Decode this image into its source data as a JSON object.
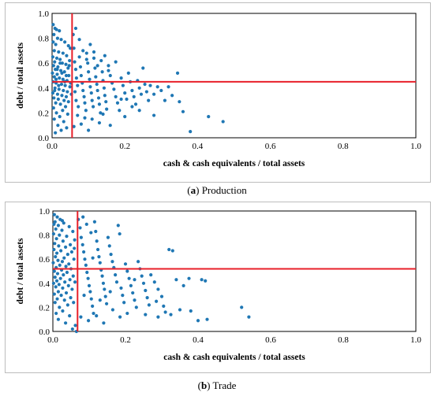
{
  "captions": [
    {
      "letter": "a",
      "text": "Production"
    },
    {
      "letter": "b",
      "text": "Trade"
    }
  ],
  "chart_data": [
    {
      "type": "scatter",
      "title": "",
      "xlabel": "cash & cash equivalents / total assets",
      "ylabel": "debt / total assets",
      "xlim": [
        0,
        1.0
      ],
      "ylim": [
        0,
        1.0
      ],
      "xticks": [
        "0.0",
        "0.2",
        "0.4",
        "0.6",
        "0.8",
        "1.0"
      ],
      "yticks": [
        "0.0",
        "0.2",
        "0.4",
        "0.6",
        "0.8",
        "1.0"
      ],
      "grid": false,
      "point_color": "#1f77b4",
      "reference_color": "#e8202a",
      "reference_lines": {
        "x": 0.055,
        "y": 0.45
      },
      "points": [
        [
          0.003,
          0.91
        ],
        [
          0.008,
          0.88
        ],
        [
          0.012,
          0.87
        ],
        [
          0.02,
          0.86
        ],
        [
          0.005,
          0.83
        ],
        [
          0.015,
          0.8
        ],
        [
          0.025,
          0.79
        ],
        [
          0.003,
          0.77
        ],
        [
          0.035,
          0.77
        ],
        [
          0.01,
          0.75
        ],
        [
          0.045,
          0.74
        ],
        [
          0.05,
          0.72
        ],
        [
          0.006,
          0.7
        ],
        [
          0.018,
          0.69
        ],
        [
          0.03,
          0.68
        ],
        [
          0.04,
          0.66
        ],
        [
          0.002,
          0.65
        ],
        [
          0.013,
          0.64
        ],
        [
          0.022,
          0.63
        ],
        [
          0.048,
          0.62
        ],
        [
          0.007,
          0.61
        ],
        [
          0.028,
          0.6
        ],
        [
          0.038,
          0.59
        ],
        [
          0.004,
          0.58
        ],
        [
          0.016,
          0.57
        ],
        [
          0.044,
          0.56
        ],
        [
          0.009,
          0.55
        ],
        [
          0.024,
          0.54
        ],
        [
          0.034,
          0.53
        ],
        [
          0.001,
          0.52
        ],
        [
          0.014,
          0.51
        ],
        [
          0.046,
          0.5
        ],
        [
          0.006,
          0.49
        ],
        [
          0.02,
          0.48
        ],
        [
          0.03,
          0.47
        ],
        [
          0.041,
          0.46
        ],
        [
          0.003,
          0.45
        ],
        [
          0.011,
          0.44
        ],
        [
          0.026,
          0.43
        ],
        [
          0.036,
          0.42
        ],
        [
          0.049,
          0.41
        ],
        [
          0.008,
          0.4
        ],
        [
          0.019,
          0.39
        ],
        [
          0.031,
          0.38
        ],
        [
          0.042,
          0.37
        ],
        [
          0.002,
          0.36
        ],
        [
          0.015,
          0.35
        ],
        [
          0.027,
          0.34
        ],
        [
          0.039,
          0.33
        ],
        [
          0.005,
          0.32
        ],
        [
          0.017,
          0.31
        ],
        [
          0.033,
          0.3
        ],
        [
          0.045,
          0.29
        ],
        [
          0.01,
          0.28
        ],
        [
          0.023,
          0.27
        ],
        [
          0.037,
          0.25
        ],
        [
          0.004,
          0.24
        ],
        [
          0.029,
          0.22
        ],
        [
          0.012,
          0.2
        ],
        [
          0.043,
          0.19
        ],
        [
          0.021,
          0.17
        ],
        [
          0.006,
          0.15
        ],
        [
          0.032,
          0.13
        ],
        [
          0.016,
          0.1
        ],
        [
          0.04,
          0.08
        ],
        [
          0.025,
          0.06
        ],
        [
          0.009,
          0.04
        ],
        [
          0.047,
          0.58
        ],
        [
          0.051,
          0.44
        ],
        [
          0.053,
          0.35
        ],
        [
          0.018,
          0.42
        ],
        [
          0.027,
          0.52
        ],
        [
          0.011,
          0.47
        ],
        [
          0.035,
          0.45
        ],
        [
          0.014,
          0.55
        ],
        [
          0.007,
          0.38
        ],
        [
          0.022,
          0.6
        ],
        [
          0.039,
          0.5
        ],
        [
          0.058,
          0.83
        ],
        [
          0.06,
          0.72
        ],
        [
          0.062,
          0.61
        ],
        [
          0.065,
          0.55
        ],
        [
          0.067,
          0.48
        ],
        [
          0.07,
          0.42
        ],
        [
          0.063,
          0.37
        ],
        [
          0.066,
          0.3
        ],
        [
          0.072,
          0.25
        ],
        [
          0.075,
          0.65
        ],
        [
          0.078,
          0.57
        ],
        [
          0.08,
          0.5
        ],
        [
          0.083,
          0.44
        ],
        [
          0.085,
          0.38
        ],
        [
          0.088,
          0.33
        ],
        [
          0.09,
          0.28
        ],
        [
          0.093,
          0.22
        ],
        [
          0.095,
          0.68
        ],
        [
          0.098,
          0.6
        ],
        [
          0.1,
          0.53
        ],
        [
          0.103,
          0.47
        ],
        [
          0.105,
          0.41
        ],
        [
          0.108,
          0.36
        ],
        [
          0.11,
          0.3
        ],
        [
          0.113,
          0.25
        ],
        [
          0.115,
          0.64
        ],
        [
          0.118,
          0.56
        ],
        [
          0.12,
          0.49
        ],
        [
          0.123,
          0.43
        ],
        [
          0.125,
          0.38
        ],
        [
          0.128,
          0.32
        ],
        [
          0.13,
          0.27
        ],
        [
          0.133,
          0.2
        ],
        [
          0.135,
          0.62
        ],
        [
          0.138,
          0.53
        ],
        [
          0.14,
          0.46
        ],
        [
          0.143,
          0.4
        ],
        [
          0.145,
          0.34
        ],
        [
          0.148,
          0.29
        ],
        [
          0.15,
          0.23
        ],
        [
          0.155,
          0.58
        ],
        [
          0.16,
          0.5
        ],
        [
          0.165,
          0.44
        ],
        [
          0.17,
          0.39
        ],
        [
          0.175,
          0.33
        ],
        [
          0.18,
          0.28
        ],
        [
          0.185,
          0.22
        ],
        [
          0.19,
          0.48
        ],
        [
          0.195,
          0.42
        ],
        [
          0.2,
          0.36
        ],
        [
          0.205,
          0.31
        ],
        [
          0.21,
          0.52
        ],
        [
          0.215,
          0.45
        ],
        [
          0.22,
          0.38
        ],
        [
          0.225,
          0.33
        ],
        [
          0.23,
          0.27
        ],
        [
          0.235,
          0.46
        ],
        [
          0.24,
          0.4
        ],
        [
          0.245,
          0.35
        ],
        [
          0.25,
          0.56
        ],
        [
          0.255,
          0.43
        ],
        [
          0.26,
          0.37
        ],
        [
          0.265,
          0.3
        ],
        [
          0.27,
          0.42
        ],
        [
          0.28,
          0.35
        ],
        [
          0.29,
          0.41
        ],
        [
          0.3,
          0.38
        ],
        [
          0.31,
          0.3
        ],
        [
          0.32,
          0.41
        ],
        [
          0.345,
          0.52
        ],
        [
          0.35,
          0.29
        ],
        [
          0.36,
          0.21
        ],
        [
          0.38,
          0.05
        ],
        [
          0.43,
          0.17
        ],
        [
          0.47,
          0.13
        ],
        [
          0.065,
          0.88
        ],
        [
          0.075,
          0.79
        ],
        [
          0.085,
          0.7
        ],
        [
          0.095,
          0.63
        ],
        [
          0.105,
          0.75
        ],
        [
          0.115,
          0.69
        ],
        [
          0.125,
          0.58
        ],
        [
          0.145,
          0.66
        ],
        [
          0.155,
          0.54
        ],
        [
          0.175,
          0.61
        ],
        [
          0.19,
          0.31
        ],
        [
          0.2,
          0.17
        ],
        [
          0.22,
          0.25
        ],
        [
          0.11,
          0.15
        ],
        [
          0.13,
          0.12
        ],
        [
          0.09,
          0.16
        ],
        [
          0.07,
          0.18
        ],
        [
          0.08,
          0.11
        ],
        [
          0.14,
          0.19
        ],
        [
          0.16,
          0.1
        ],
        [
          0.24,
          0.22
        ],
        [
          0.28,
          0.18
        ],
        [
          0.33,
          0.34
        ],
        [
          0.06,
          0.09
        ],
        [
          0.1,
          0.06
        ]
      ]
    },
    {
      "type": "scatter",
      "title": "",
      "xlabel": "cash & cash equivalents / total assets",
      "ylabel": "debt / total assets",
      "xlim": [
        0,
        1.0
      ],
      "ylim": [
        0,
        1.0
      ],
      "xticks": [
        "0.0",
        "0.2",
        "0.4",
        "0.6",
        "0.8",
        "1.0"
      ],
      "yticks": [
        "0.0",
        "0.2",
        "0.4",
        "0.6",
        "0.8",
        "1.0"
      ],
      "grid": false,
      "point_color": "#1f77b4",
      "reference_color": "#e8202a",
      "reference_lines": {
        "x": 0.068,
        "y": 0.52
      },
      "points": [
        [
          0.004,
          0.97
        ],
        [
          0.012,
          0.95
        ],
        [
          0.02,
          0.93
        ],
        [
          0.006,
          0.91
        ],
        [
          0.03,
          0.9
        ],
        [
          0.015,
          0.88
        ],
        [
          0.045,
          0.87
        ],
        [
          0.008,
          0.85
        ],
        [
          0.025,
          0.84
        ],
        [
          0.055,
          0.83
        ],
        [
          0.002,
          0.81
        ],
        [
          0.018,
          0.8
        ],
        [
          0.038,
          0.79
        ],
        [
          0.01,
          0.77
        ],
        [
          0.06,
          0.76
        ],
        [
          0.028,
          0.75
        ],
        [
          0.005,
          0.73
        ],
        [
          0.048,
          0.72
        ],
        [
          0.016,
          0.71
        ],
        [
          0.035,
          0.7
        ],
        [
          0.003,
          0.68
        ],
        [
          0.022,
          0.67
        ],
        [
          0.052,
          0.66
        ],
        [
          0.011,
          0.65
        ],
        [
          0.041,
          0.64
        ],
        [
          0.007,
          0.62
        ],
        [
          0.031,
          0.61
        ],
        [
          0.058,
          0.6
        ],
        [
          0.014,
          0.59
        ],
        [
          0.026,
          0.58
        ],
        [
          0.001,
          0.57
        ],
        [
          0.044,
          0.56
        ],
        [
          0.019,
          0.55
        ],
        [
          0.036,
          0.54
        ],
        [
          0.009,
          0.53
        ],
        [
          0.05,
          0.52
        ],
        [
          0.024,
          0.51
        ],
        [
          0.004,
          0.5
        ],
        [
          0.039,
          0.49
        ],
        [
          0.013,
          0.48
        ],
        [
          0.029,
          0.47
        ],
        [
          0.056,
          0.46
        ],
        [
          0.006,
          0.45
        ],
        [
          0.021,
          0.44
        ],
        [
          0.047,
          0.43
        ],
        [
          0.011,
          0.42
        ],
        [
          0.033,
          0.41
        ],
        [
          0.002,
          0.4
        ],
        [
          0.017,
          0.39
        ],
        [
          0.043,
          0.38
        ],
        [
          0.008,
          0.37
        ],
        [
          0.027,
          0.36
        ],
        [
          0.053,
          0.35
        ],
        [
          0.015,
          0.33
        ],
        [
          0.037,
          0.32
        ],
        [
          0.004,
          0.31
        ],
        [
          0.023,
          0.3
        ],
        [
          0.049,
          0.28
        ],
        [
          0.012,
          0.27
        ],
        [
          0.032,
          0.26
        ],
        [
          0.006,
          0.24
        ],
        [
          0.041,
          0.22
        ],
        [
          0.018,
          0.2
        ],
        [
          0.027,
          0.17
        ],
        [
          0.009,
          0.15
        ],
        [
          0.046,
          0.13
        ],
        [
          0.015,
          0.1
        ],
        [
          0.035,
          0.07
        ],
        [
          0.062,
          0.05
        ],
        [
          0.054,
          0.02
        ],
        [
          0.065,
          0.0
        ],
        [
          0.003,
          0.89
        ],
        [
          0.026,
          0.92
        ],
        [
          0.059,
          0.69
        ],
        [
          0.061,
          0.41
        ],
        [
          0.057,
          0.24
        ],
        [
          0.07,
          0.93
        ],
        [
          0.075,
          0.86
        ],
        [
          0.078,
          0.78
        ],
        [
          0.082,
          0.72
        ],
        [
          0.085,
          0.66
        ],
        [
          0.088,
          0.6
        ],
        [
          0.091,
          0.55
        ],
        [
          0.094,
          0.49
        ],
        [
          0.097,
          0.44
        ],
        [
          0.1,
          0.38
        ],
        [
          0.103,
          0.33
        ],
        [
          0.106,
          0.27
        ],
        [
          0.109,
          0.21
        ],
        [
          0.112,
          0.15
        ],
        [
          0.115,
          0.91
        ],
        [
          0.118,
          0.83
        ],
        [
          0.121,
          0.75
        ],
        [
          0.124,
          0.68
        ],
        [
          0.127,
          0.62
        ],
        [
          0.13,
          0.57
        ],
        [
          0.133,
          0.51
        ],
        [
          0.136,
          0.46
        ],
        [
          0.139,
          0.4
        ],
        [
          0.142,
          0.35
        ],
        [
          0.145,
          0.29
        ],
        [
          0.148,
          0.23
        ],
        [
          0.152,
          0.78
        ],
        [
          0.156,
          0.71
        ],
        [
          0.16,
          0.64
        ],
        [
          0.164,
          0.58
        ],
        [
          0.168,
          0.53
        ],
        [
          0.172,
          0.47
        ],
        [
          0.176,
          0.41
        ],
        [
          0.18,
          0.88
        ],
        [
          0.184,
          0.81
        ],
        [
          0.188,
          0.36
        ],
        [
          0.192,
          0.3
        ],
        [
          0.196,
          0.24
        ],
        [
          0.2,
          0.56
        ],
        [
          0.205,
          0.5
        ],
        [
          0.21,
          0.44
        ],
        [
          0.215,
          0.38
        ],
        [
          0.22,
          0.32
        ],
        [
          0.225,
          0.26
        ],
        [
          0.23,
          0.2
        ],
        [
          0.235,
          0.58
        ],
        [
          0.24,
          0.52
        ],
        [
          0.245,
          0.46
        ],
        [
          0.25,
          0.4
        ],
        [
          0.255,
          0.34
        ],
        [
          0.26,
          0.28
        ],
        [
          0.265,
          0.22
        ],
        [
          0.27,
          0.47
        ],
        [
          0.28,
          0.41
        ],
        [
          0.29,
          0.35
        ],
        [
          0.3,
          0.29
        ],
        [
          0.31,
          0.16
        ],
        [
          0.32,
          0.68
        ],
        [
          0.33,
          0.67
        ],
        [
          0.34,
          0.43
        ],
        [
          0.36,
          0.38
        ],
        [
          0.375,
          0.44
        ],
        [
          0.38,
          0.17
        ],
        [
          0.4,
          0.09
        ],
        [
          0.41,
          0.43
        ],
        [
          0.42,
          0.42
        ],
        [
          0.425,
          0.1
        ],
        [
          0.52,
          0.2
        ],
        [
          0.54,
          0.12
        ],
        [
          0.083,
          0.95
        ],
        [
          0.093,
          0.89
        ],
        [
          0.105,
          0.82
        ],
        [
          0.12,
          0.13
        ],
        [
          0.14,
          0.07
        ],
        [
          0.165,
          0.18
        ],
        [
          0.185,
          0.12
        ],
        [
          0.205,
          0.15
        ],
        [
          0.225,
          0.43
        ],
        [
          0.255,
          0.14
        ],
        [
          0.285,
          0.25
        ],
        [
          0.305,
          0.21
        ],
        [
          0.325,
          0.14
        ],
        [
          0.098,
          0.09
        ],
        [
          0.077,
          0.12
        ],
        [
          0.086,
          0.3
        ],
        [
          0.13,
          0.26
        ],
        [
          0.158,
          0.33
        ],
        [
          0.29,
          0.12
        ],
        [
          0.35,
          0.18
        ],
        [
          0.11,
          0.61
        ]
      ]
    }
  ]
}
